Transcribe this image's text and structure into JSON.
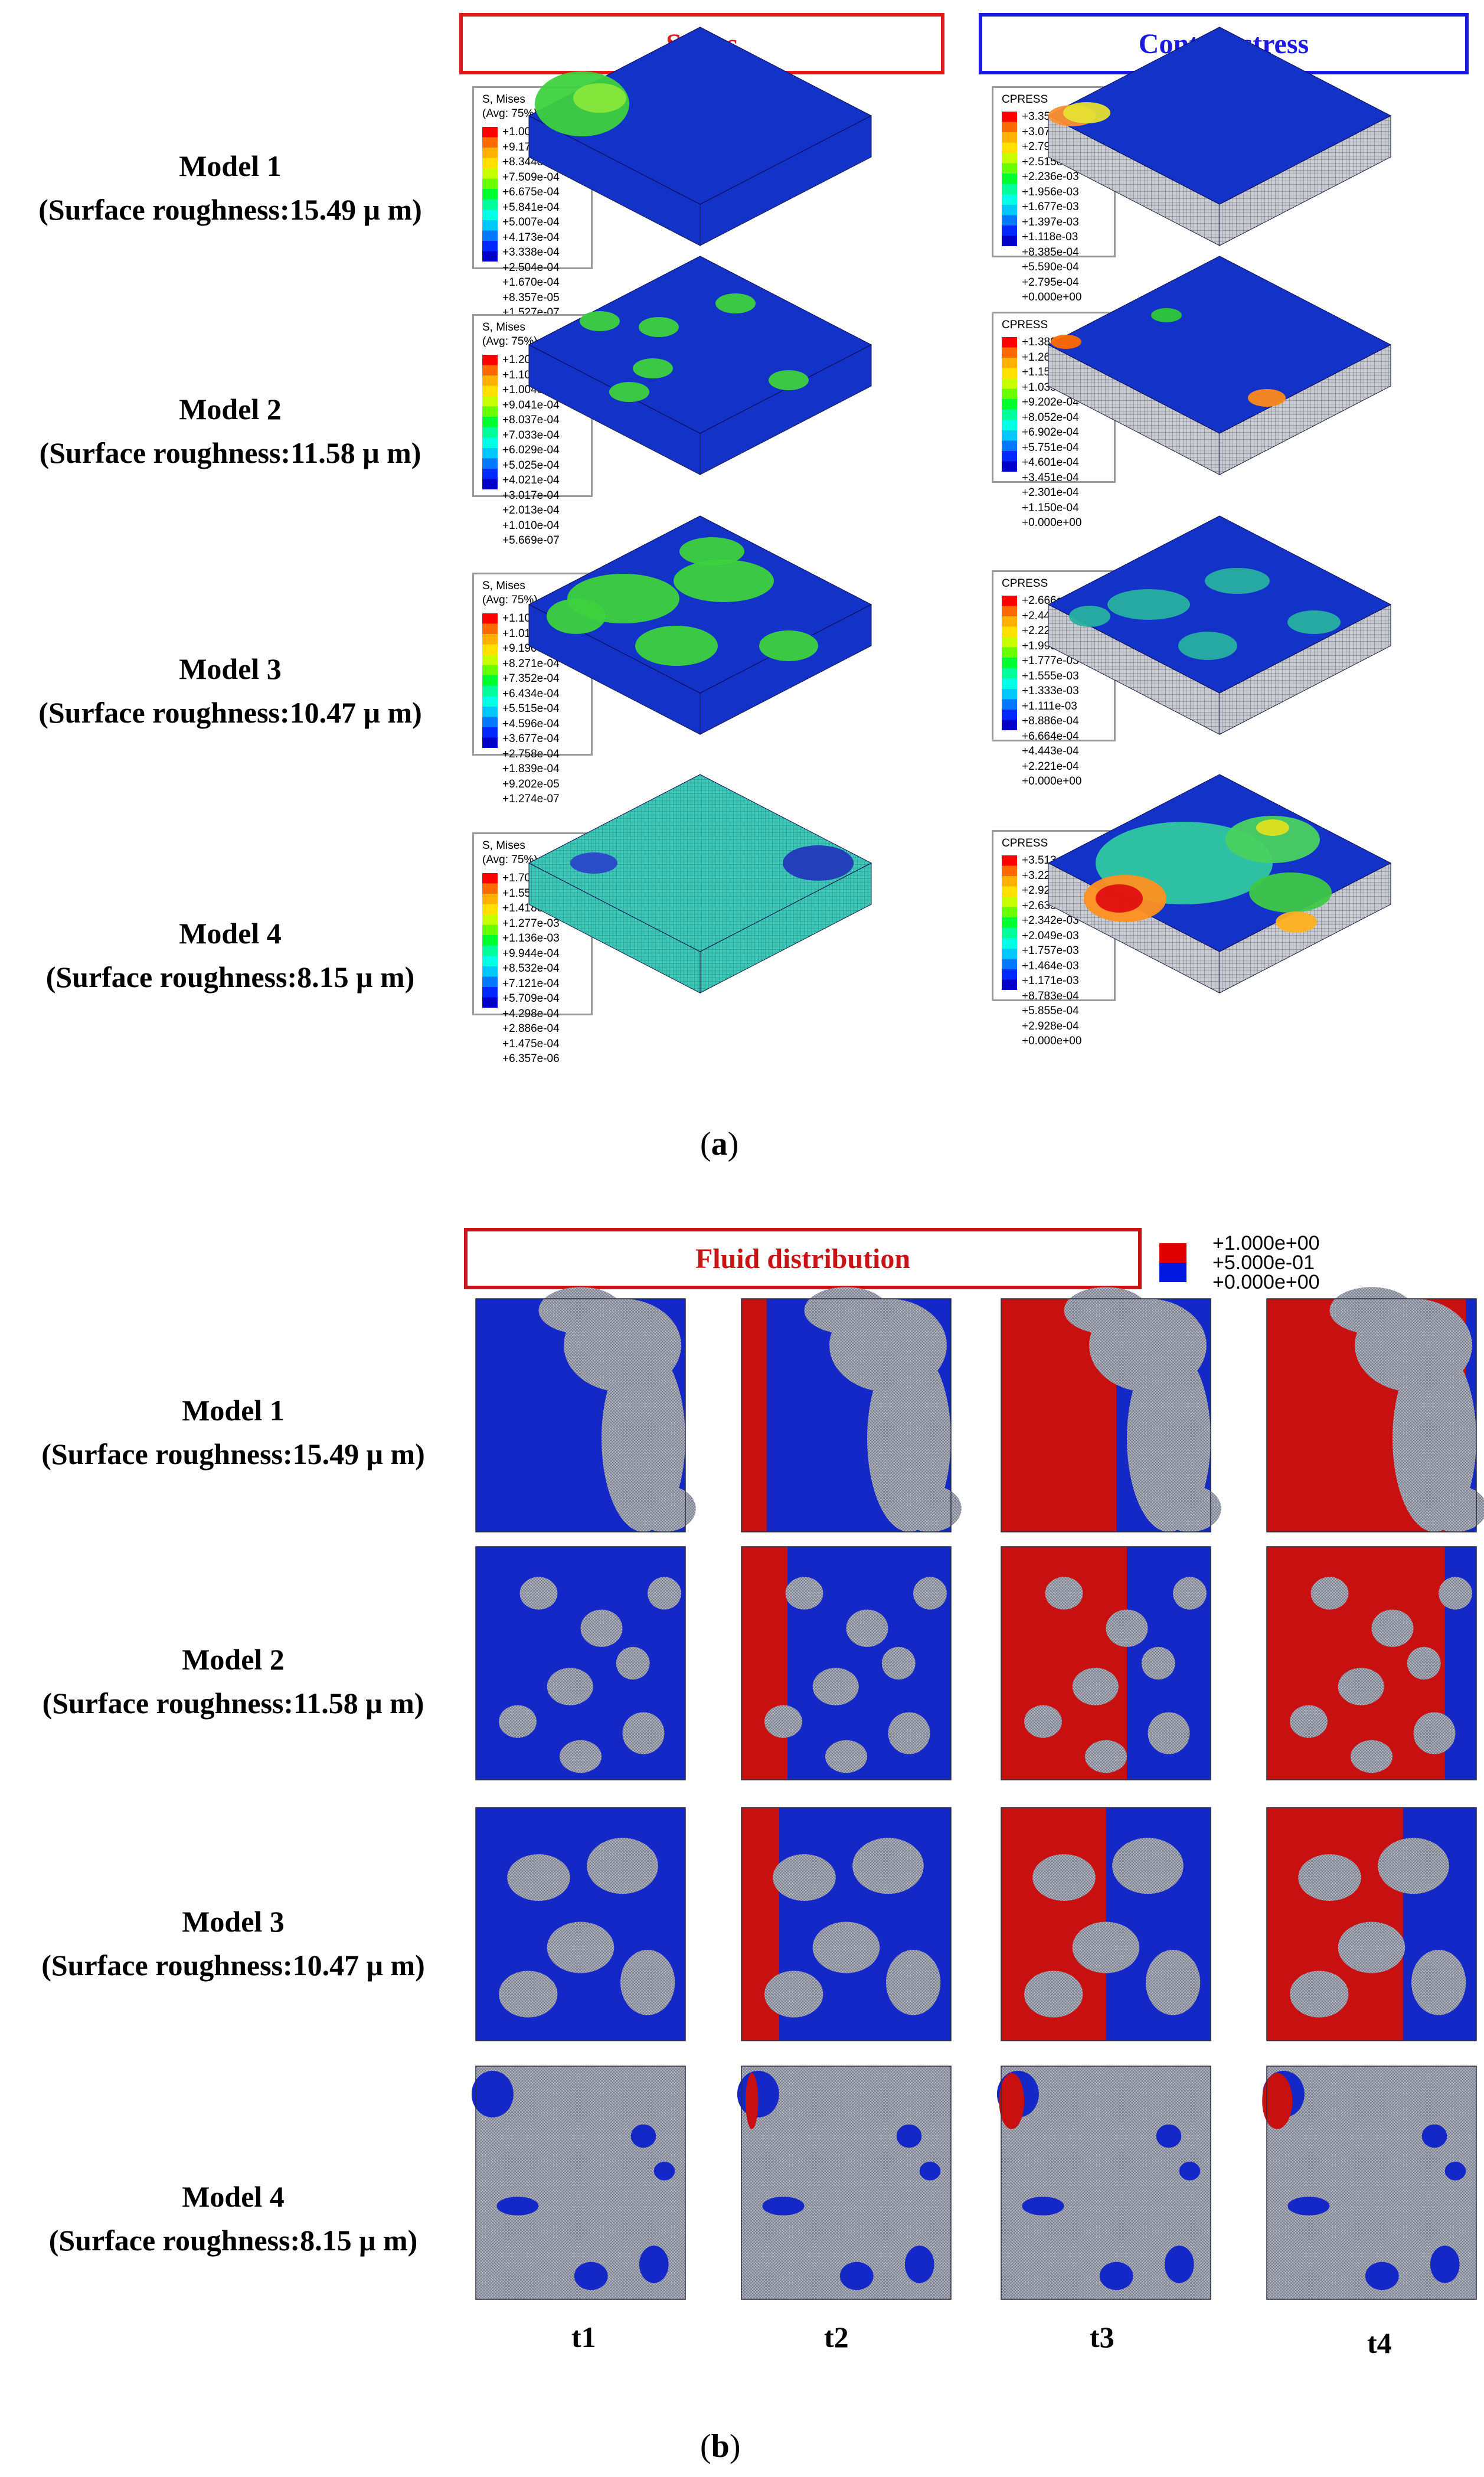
{
  "part_a": {
    "caption": "(a)",
    "caption_letter": "a",
    "headers": {
      "stress": "Stress",
      "contact": "Contact stress"
    },
    "models": [
      {
        "name": "Model 1",
        "roughness": "(Surface roughness:15.49 μ m)",
        "stress_legend": {
          "title": "S, Mises",
          "subtitle": "(Avg: 75%)",
          "values": [
            "+1.001e-03",
            "+9.178e-04",
            "+8.344e-04",
            "+7.509e-04",
            "+6.675e-04",
            "+5.841e-04",
            "+5.007e-04",
            "+4.173e-04",
            "+3.338e-04",
            "+2.504e-04",
            "+1.670e-04",
            "+8.357e-05",
            "+1.527e-07"
          ]
        },
        "contact_legend": {
          "title": "CPRESS",
          "values": [
            "+3.354e-03",
            "+3.074e-03",
            "+2.795e-03",
            "+2.515e-03",
            "+2.236e-03",
            "+1.956e-03",
            "+1.677e-03",
            "+1.397e-03",
            "+1.118e-03",
            "+8.385e-04",
            "+5.590e-04",
            "+2.795e-04",
            "+0.000e+00"
          ]
        }
      },
      {
        "name": "Model 2",
        "roughness": "(Surface roughness:11.58 μ m)",
        "stress_legend": {
          "title": "S, Mises",
          "subtitle": "(Avg: 75%)",
          "values": [
            "+1.205e-03",
            "+1.105e-03",
            "+1.004e-03",
            "+9.041e-04",
            "+8.037e-04",
            "+7.033e-04",
            "+6.029e-04",
            "+5.025e-04",
            "+4.021e-04",
            "+3.017e-04",
            "+2.013e-04",
            "+1.010e-04",
            "+5.669e-07"
          ]
        },
        "contact_legend": {
          "title": "CPRESS",
          "values": [
            "+1.380e-03",
            "+1.265e-03",
            "+1.150e-03",
            "+1.035e-03",
            "+9.202e-04",
            "+8.052e-04",
            "+6.902e-04",
            "+5.751e-04",
            "+4.601e-04",
            "+3.451e-04",
            "+2.301e-04",
            "+1.150e-04",
            "+0.000e+00"
          ]
        }
      },
      {
        "name": "Model 3",
        "roughness": "(Surface roughness:10.47 μ m)",
        "stress_legend": {
          "title": "S, Mises",
          "subtitle": "(Avg: 75%)",
          "values": [
            "+1.103e-03",
            "+1.011e-03",
            "+9.190e-04",
            "+8.271e-04",
            "+7.352e-04",
            "+6.434e-04",
            "+5.515e-04",
            "+4.596e-04",
            "+3.677e-04",
            "+2.758e-04",
            "+1.839e-04",
            "+9.202e-05",
            "+1.274e-07"
          ]
        },
        "contact_legend": {
          "title": "CPRESS",
          "values": [
            "+2.666e-03",
            "+2.444e-03",
            "+2.221e-03",
            "+1.999e-03",
            "+1.777e-03",
            "+1.555e-03",
            "+1.333e-03",
            "+1.111e-03",
            "+8.886e-04",
            "+6.664e-04",
            "+4.443e-04",
            "+2.221e-04",
            "+0.000e+00"
          ]
        }
      },
      {
        "name": "Model 4",
        "roughness": "(Surface roughness:8.15 μ m)",
        "stress_legend": {
          "title": "S, Mises",
          "subtitle": "(Avg: 75%)",
          "values": [
            "+1.700e-03",
            "+1.559e-03",
            "+1.418e-03",
            "+1.277e-03",
            "+1.136e-03",
            "+9.944e-04",
            "+8.532e-04",
            "+7.121e-04",
            "+5.709e-04",
            "+4.298e-04",
            "+2.886e-04",
            "+1.475e-04",
            "+6.357e-06"
          ]
        },
        "contact_legend": {
          "title": "CPRESS",
          "values": [
            "+3.513e-03",
            "+3.221e-03",
            "+2.928e-03",
            "+2.635e-03",
            "+2.342e-03",
            "+2.049e-03",
            "+1.757e-03",
            "+1.464e-03",
            "+1.171e-03",
            "+8.783e-04",
            "+5.855e-04",
            "+2.928e-04",
            "+0.000e+00"
          ]
        }
      }
    ],
    "contour_colors": [
      "#ff0000",
      "#ff6a00",
      "#ffb000",
      "#ffe000",
      "#c8ff00",
      "#6aff00",
      "#00ff30",
      "#00ff9a",
      "#00ffe6",
      "#00c8ff",
      "#0078ff",
      "#0028ff",
      "#0000c8"
    ]
  },
  "part_b": {
    "caption": "(b)",
    "caption_letter": "b",
    "header": "Fluid distribution",
    "legend": {
      "values": [
        "+1.000e+00",
        "+5.000e-01",
        "+0.000e+00"
      ],
      "colors": [
        "#e00000",
        "#0018e0"
      ]
    },
    "time_labels": [
      "t1",
      "t2",
      "t3",
      "t4"
    ],
    "models": [
      {
        "name": "Model 1",
        "roughness": "(Surface roughness:15.49 μ m)"
      },
      {
        "name": "Model 2",
        "roughness": "(Surface roughness:11.58 μ m)"
      },
      {
        "name": "Model 3",
        "roughness": "(Surface roughness:10.47 μ m)"
      },
      {
        "name": "Model 4",
        "roughness": "(Surface roughness:8.15 μ m)"
      }
    ]
  },
  "colors": {
    "stress_header": "#e01a1a",
    "contact_header": "#1a1ae0",
    "fluid_header": "#c81414",
    "base_blue": "#1232c8",
    "fluid_blue": "#1428c8",
    "fluid_red": "#c81010",
    "mesh_gray": "#a8acb4"
  }
}
